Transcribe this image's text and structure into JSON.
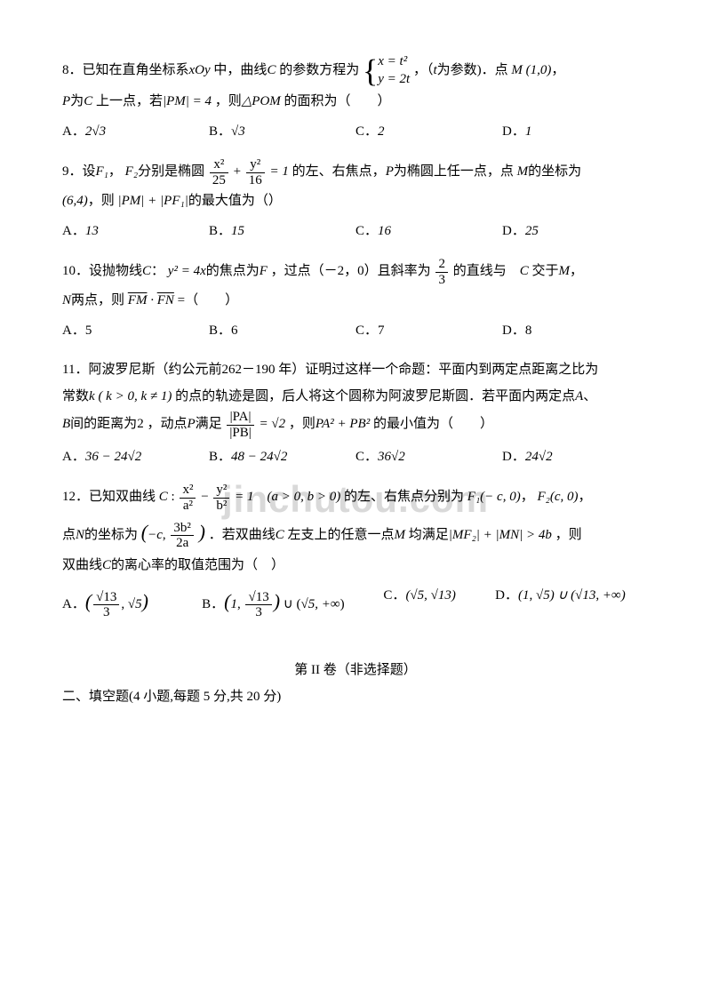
{
  "watermark": "jinchutou.com",
  "q8": {
    "prefix": "8．已知在直角坐标系",
    "coord": "xOy",
    "mid1": "中，曲线",
    "curve": "C",
    "mid2": "的参数方程为",
    "param_x": "x = t²",
    "param_y": "y = 2t",
    "mid3": "，（",
    "tvar": "t",
    "mid4": "为参数)．点",
    "pointM": "M (1,0)",
    "comma": "，",
    "line2a": "P",
    "line2b": "为",
    "line2c": "C",
    "line2d": "上一点，若",
    "pm": "|PM| = 4",
    "line2e": "，则",
    "tri": "△POM",
    "line2f": "的面积为（　　）",
    "choices": {
      "A": "2√3",
      "B": "√3",
      "C": "2",
      "D": "1"
    }
  },
  "q9": {
    "prefix": "9．设",
    "f1": "F₁",
    "sep": "，",
    "f2": "F₂",
    "mid1": "分别是椭圆",
    "ell_l_num": "x²",
    "ell_l_den": "25",
    "ell_r_num": "y²",
    "ell_r_den": "16",
    "eq1": " = 1",
    "mid2": "的左、右焦点，",
    "P": "P",
    "mid3": "为椭圆上任一点，点",
    "M": "M",
    "mid4": "的坐标为",
    "coord": "(6,4)",
    "mid5": "，则",
    "expr": "|PM| + |PF₁|",
    "mid6": "的最大值为（）",
    "choices": {
      "A": "13",
      "B": "15",
      "C": "16",
      "D": "25"
    }
  },
  "q10": {
    "prefix": "10．设抛物线",
    "C": "C",
    "colon": "：",
    "eq": "y² = 4x",
    "mid1": "的焦点为",
    "F": "F",
    "mid2": "，过点（－2，0）且斜率为",
    "frac_num": "2",
    "frac_den": "3",
    "mid3": "的直线与　",
    "C2": "C",
    "mid4": "交于",
    "M": "M",
    "comma": "，",
    "N": "N",
    "mid5": "两点，则",
    "dot": "FM · FN",
    "mid6": " =（　　）",
    "choices": {
      "A": "5",
      "B": "6",
      "C": "7",
      "D": "8"
    }
  },
  "q11": {
    "prefix": "11．阿波罗尼斯（约公元前",
    "years": "262－190",
    "mid1": "年）证明过这样一个命题：平面内到两定点距离之比为",
    "line2a": "常数",
    "k": "k",
    "kcond": "( k > 0, k ≠ 1)",
    "line2b": "的点的轨迹是圆，后人将这个圆称为阿波罗尼斯圆．若平面内两定点",
    "A": "A",
    "sep": "、",
    "B": "B",
    "line3a": "间的距离为",
    "two": "2",
    "line3b": "，动点",
    "P": "P",
    "line3c": "满足",
    "frac_num": "|PA|",
    "frac_den": "|PB|",
    "eq": " = √2",
    "line3d": "，则",
    "expr": "PA² + PB²",
    "line3e": "的最小值为（　　）",
    "choices": {
      "A": "36 − 24√2",
      "B": "48 − 24√2",
      "C": "36√2",
      "D": "24√2"
    }
  },
  "q12": {
    "prefix": "12．已知双曲线",
    "C": "C",
    "frac1_num": "x²",
    "frac1_den": "a²",
    "frac2_num": "y²",
    "frac2_den": "b²",
    "eq": " = 1　(a > 0, b > 0)",
    "mid1": "的左、右焦点分别为",
    "F1": "F₁(− c, 0)",
    "sep": "，",
    "F2": "F₂(c, 0)",
    "comma": "，",
    "line2a": "点",
    "N": "N",
    "line2b": "的坐标为",
    "Ncoord_x": "−c",
    "Ncoord_y_num": "3b²",
    "Ncoord_y_den": "2a",
    "line2c": "．若双曲线",
    "C2": "C",
    "line2d": "左支上的任意一点",
    "M": "M",
    "line2e": "均满足",
    "ineq": "|MF₂| + |MN| > 4b",
    "line2f": "，则",
    "line3a": "双曲线",
    "C3": "C",
    "line3b": "的离心率的取值范围为（　）",
    "choices": {
      "A_l_num": "√13",
      "A_l_den": "3",
      "A_r": "√5",
      "B_l": "1",
      "B_r_num": "√13",
      "B_r_den": "3",
      "B_ext": "√5, +∞",
      "C": "(√5, √13)",
      "D": "(1, √5) ∪ (√13, +∞)"
    }
  },
  "section2": {
    "title": "第 II 卷（非选择题）",
    "sub": "二、填空题(4 小题,每题 5 分,共 20 分)"
  }
}
